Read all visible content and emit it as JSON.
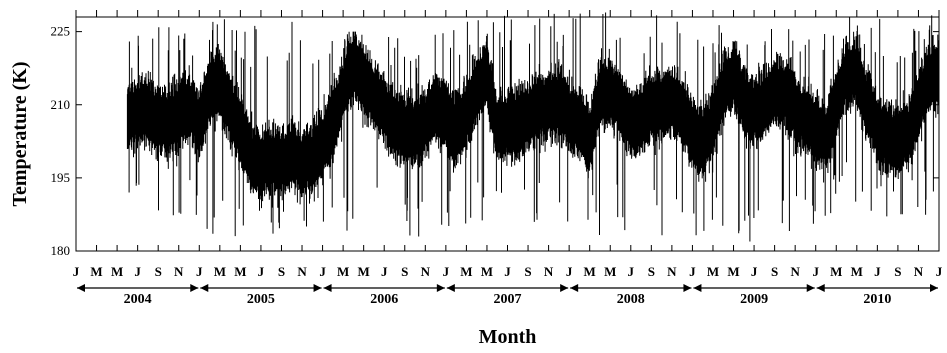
{
  "chart_data": {
    "type": "line",
    "title": "",
    "xlabel": "Month",
    "ylabel": "Temperature (K)",
    "ylim": [
      180,
      228
    ],
    "yticks": [
      180,
      195,
      210,
      225
    ],
    "x_start": "2004-01",
    "x_end": "2011-01",
    "month_tick_labels": [
      "J",
      "M",
      "M",
      "J",
      "S",
      "N"
    ],
    "final_tick_label": "J",
    "years": [
      "2004",
      "2005",
      "2006",
      "2007",
      "2008",
      "2009",
      "2010"
    ],
    "series": [
      {
        "color": "#000000",
        "style": "daily-values",
        "note_range_by_year": [
          {
            "year": "2004",
            "start_month": 6,
            "low": 187,
            "high": 226
          },
          {
            "year": "2005",
            "low": 183,
            "high": 228
          },
          {
            "year": "2006",
            "low": 182,
            "high": 225
          },
          {
            "year": "2007",
            "low": 185,
            "high": 229
          },
          {
            "year": "2008",
            "low": 183,
            "high": 229
          },
          {
            "year": "2009",
            "low": 180,
            "high": 228
          },
          {
            "year": "2010",
            "low": 187,
            "high": 229
          }
        ],
        "monthly_mean": [
          {
            "x": "2004-06",
            "y": 207
          },
          {
            "x": "2004-07",
            "y": 209
          },
          {
            "x": "2004-08",
            "y": 208
          },
          {
            "x": "2004-09",
            "y": 207
          },
          {
            "x": "2004-10",
            "y": 206
          },
          {
            "x": "2004-11",
            "y": 208
          },
          {
            "x": "2004-12",
            "y": 210
          },
          {
            "x": "2005-01",
            "y": 206
          },
          {
            "x": "2005-02",
            "y": 213
          },
          {
            "x": "2005-03",
            "y": 214
          },
          {
            "x": "2005-04",
            "y": 209
          },
          {
            "x": "2005-05",
            "y": 205
          },
          {
            "x": "2005-06",
            "y": 199
          },
          {
            "x": "2005-07",
            "y": 198
          },
          {
            "x": "2005-08",
            "y": 199
          },
          {
            "x": "2005-09",
            "y": 198
          },
          {
            "x": "2005-10",
            "y": 200
          },
          {
            "x": "2005-11",
            "y": 198
          },
          {
            "x": "2005-12",
            "y": 199
          },
          {
            "x": "2006-01",
            "y": 202
          },
          {
            "x": "2006-02",
            "y": 206
          },
          {
            "x": "2006-03",
            "y": 213
          },
          {
            "x": "2006-04",
            "y": 218
          },
          {
            "x": "2006-05",
            "y": 215
          },
          {
            "x": "2006-06",
            "y": 212
          },
          {
            "x": "2006-07",
            "y": 209
          },
          {
            "x": "2006-08",
            "y": 206
          },
          {
            "x": "2006-09",
            "y": 205
          },
          {
            "x": "2006-10",
            "y": 205
          },
          {
            "x": "2006-11",
            "y": 206
          },
          {
            "x": "2006-12",
            "y": 210
          },
          {
            "x": "2007-01",
            "y": 207
          },
          {
            "x": "2007-02",
            "y": 205
          },
          {
            "x": "2007-03",
            "y": 208
          },
          {
            "x": "2007-04",
            "y": 213
          },
          {
            "x": "2007-05",
            "y": 216
          },
          {
            "x": "2007-06",
            "y": 205
          },
          {
            "x": "2007-07",
            "y": 206
          },
          {
            "x": "2007-08",
            "y": 206
          },
          {
            "x": "2007-09",
            "y": 208
          },
          {
            "x": "2007-10",
            "y": 209
          },
          {
            "x": "2007-11",
            "y": 210
          },
          {
            "x": "2007-12",
            "y": 210
          },
          {
            "x": "2008-01",
            "y": 208
          },
          {
            "x": "2008-02",
            "y": 206
          },
          {
            "x": "2008-03",
            "y": 203
          },
          {
            "x": "2008-04",
            "y": 212
          },
          {
            "x": "2008-05",
            "y": 213
          },
          {
            "x": "2008-06",
            "y": 210
          },
          {
            "x": "2008-07",
            "y": 206
          },
          {
            "x": "2008-08",
            "y": 207
          },
          {
            "x": "2008-09",
            "y": 209
          },
          {
            "x": "2008-10",
            "y": 210
          },
          {
            "x": "2008-11",
            "y": 211
          },
          {
            "x": "2008-12",
            "y": 208
          },
          {
            "x": "2009-01",
            "y": 205
          },
          {
            "x": "2009-02",
            "y": 202
          },
          {
            "x": "2009-03",
            "y": 206
          },
          {
            "x": "2009-04",
            "y": 213
          },
          {
            "x": "2009-05",
            "y": 216
          },
          {
            "x": "2009-06",
            "y": 211
          },
          {
            "x": "2009-07",
            "y": 209
          },
          {
            "x": "2009-08",
            "y": 210
          },
          {
            "x": "2009-09",
            "y": 213
          },
          {
            "x": "2009-10",
            "y": 212
          },
          {
            "x": "2009-11",
            "y": 209
          },
          {
            "x": "2009-12",
            "y": 207
          },
          {
            "x": "2010-01",
            "y": 205
          },
          {
            "x": "2010-02",
            "y": 203
          },
          {
            "x": "2010-03",
            "y": 210
          },
          {
            "x": "2010-04",
            "y": 216
          },
          {
            "x": "2010-05",
            "y": 217
          },
          {
            "x": "2010-06",
            "y": 210
          },
          {
            "x": "2010-07",
            "y": 205
          },
          {
            "x": "2010-08",
            "y": 203
          },
          {
            "x": "2010-09",
            "y": 202
          },
          {
            "x": "2010-10",
            "y": 204
          },
          {
            "x": "2010-11",
            "y": 210
          },
          {
            "x": "2010-12",
            "y": 216
          }
        ]
      }
    ],
    "grid": false,
    "legend": "none"
  }
}
